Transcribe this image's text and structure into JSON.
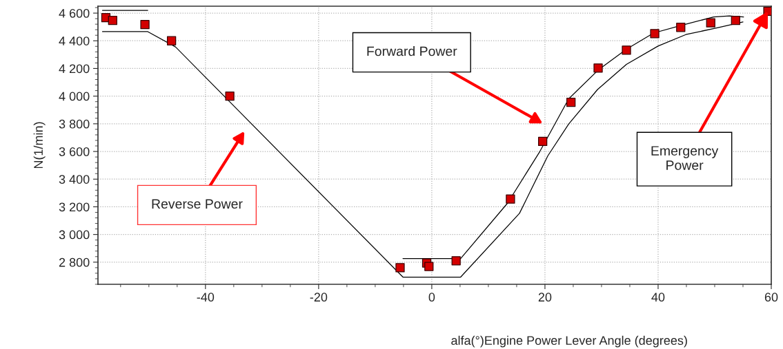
{
  "chart_data": {
    "type": "scatter",
    "xlabel": "alfa(°)Engine Power Lever Angle (degrees)",
    "ylabel": "N(1/min)",
    "xlim": [
      -59,
      60
    ],
    "ylim": [
      2640,
      4650
    ],
    "xticks": [
      -40,
      -20,
      0,
      20,
      40,
      60
    ],
    "yticks": [
      {
        "value": 2800,
        "label": "2 800"
      },
      {
        "value": 3000,
        "label": "3 000"
      },
      {
        "value": 3200,
        "label": "3 200"
      },
      {
        "value": 3400,
        "label": "3 400"
      },
      {
        "value": 3600,
        "label": "3 600"
      },
      {
        "value": 3800,
        "label": "3 800"
      },
      {
        "value": 4000,
        "label": "4 000"
      },
      {
        "value": 4200,
        "label": "4 200"
      },
      {
        "value": 4400,
        "label": "4 400"
      },
      {
        "value": 4600,
        "label": "4 600"
      }
    ],
    "grid": true,
    "series": [
      {
        "type": "line",
        "color": "#000000",
        "marker": "none",
        "x": [
          -58.2,
          -50.2
        ],
        "values": [
          4620,
          4620
        ]
      },
      {
        "type": "line",
        "color": "#000000",
        "marker": "none",
        "x": [
          -5.1,
          5.1,
          13.4,
          19.1,
          24.2,
          29.4,
          34.4,
          39.2,
          44.1,
          49.8,
          52.6,
          55.1
        ],
        "values": [
          2826,
          2826,
          3227,
          3600,
          3981,
          4188,
          4339,
          4456,
          4511,
          4572,
          4580,
          4572
        ]
      },
      {
        "type": "line",
        "color": "#000000",
        "marker": "none",
        "x": [
          -58.2,
          -50.2,
          -45.3,
          -5.1,
          5.1,
          15.5,
          20.5,
          24.2,
          29.3,
          34.4,
          40.0,
          44.9,
          50.6,
          55.0
        ],
        "values": [
          4466,
          4466,
          4356,
          2692,
          2692,
          3153,
          3568,
          3799,
          4048,
          4230,
          4362,
          4445,
          4495,
          4536
        ]
      },
      {
        "color": "#d40000",
        "marker": "square",
        "x": [
          -57.6,
          -56.4,
          -50.7,
          -46.0,
          -35.7,
          -5.6,
          -0.9,
          -0.5,
          4.3,
          13.9,
          19.6,
          24.6,
          29.4,
          34.4,
          39.4,
          44.0,
          49.3,
          53.7,
          59.4
        ],
        "values": [
          4567,
          4547,
          4517,
          4400,
          4000,
          2760,
          2794,
          2769,
          2810,
          3256,
          3673,
          3955,
          4203,
          4332,
          4452,
          4497,
          4530,
          4547,
          4613
        ]
      }
    ],
    "annotations": [
      "Reverse Power",
      "Forward Power",
      {
        "text": "Emergency\nPower",
        "x": 59.4,
        "y": 4613
      }
    ]
  }
}
